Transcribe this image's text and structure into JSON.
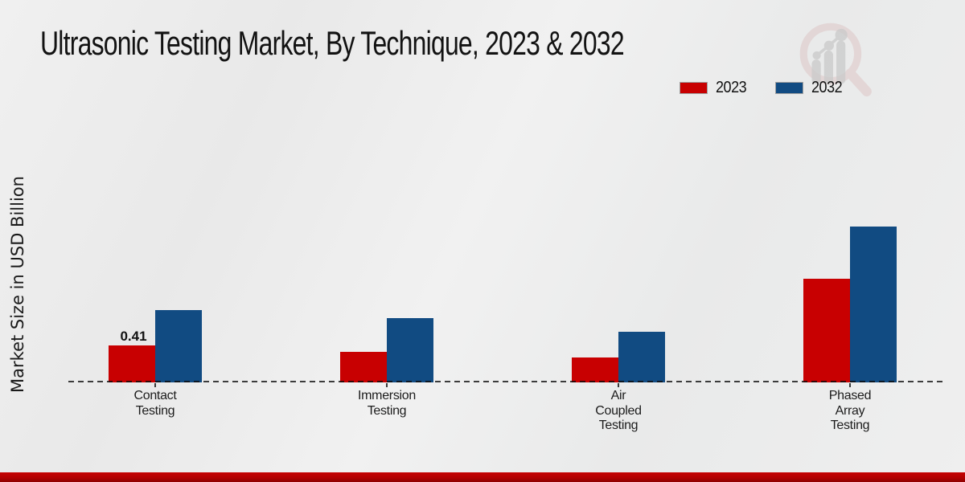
{
  "title": "Ultrasonic Testing Market, By Technique, 2023 & 2032",
  "y_axis_label": "Market Size in USD Billion",
  "legend": {
    "position": "top-right",
    "items": [
      {
        "label": "2023",
        "color": "#c80001"
      },
      {
        "label": "2032",
        "color": "#114b82"
      }
    ]
  },
  "watermark_icon": "magnifier-growth-chart-logo",
  "footer": {
    "color": "#c00000"
  },
  "chart_data": {
    "type": "bar",
    "title": "Ultrasonic Testing Market, By Technique, 2023 & 2032",
    "xlabel": "",
    "ylabel": "Market Size in USD Billion",
    "categories": [
      "Contact Testing",
      "Immersion Testing",
      "Air Coupled Testing",
      "Phased Array Testing"
    ],
    "category_label_lines": [
      [
        "Contact",
        "Testing"
      ],
      [
        "Immersion",
        "Testing"
      ],
      [
        "Air",
        "Coupled",
        "Testing"
      ],
      [
        "Phased",
        "Array",
        "Testing"
      ]
    ],
    "series": [
      {
        "name": "2023",
        "color": "#c80001",
        "values": [
          0.41,
          0.34,
          0.28,
          1.15
        ]
      },
      {
        "name": "2032",
        "color": "#114b82",
        "values": [
          0.8,
          0.71,
          0.56,
          1.73
        ]
      }
    ],
    "bar_labels": [
      {
        "category_index": 0,
        "series_index": 0,
        "text": "0.41"
      }
    ],
    "ylim": [
      0,
      2
    ],
    "grid": false,
    "y_axis_ticks_visible": false,
    "baseline_style": "dashed",
    "legend_position": "top-right"
  }
}
